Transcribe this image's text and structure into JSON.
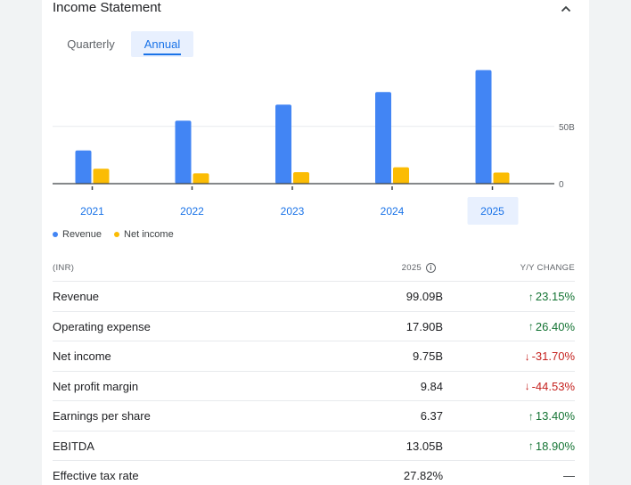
{
  "header": {
    "title": "Income Statement"
  },
  "tabs": {
    "quarterly": "Quarterly",
    "annual": "Annual"
  },
  "chart_data": {
    "type": "bar",
    "categories": [
      "2021",
      "2022",
      "2023",
      "2024",
      "2025"
    ],
    "series": [
      {
        "name": "Revenue",
        "color": "#4285f4",
        "values": [
          29,
          55,
          69,
          80,
          99.09
        ]
      },
      {
        "name": "Net income",
        "color": "#fbbc04",
        "values": [
          13,
          9,
          10,
          14.3,
          9.75
        ]
      }
    ],
    "y_ticks": [
      {
        "value": 50,
        "label": "50B"
      },
      {
        "value": 0,
        "label": "0"
      }
    ],
    "ylim": [
      0,
      100
    ],
    "selected_category": "2025",
    "legend_position": "bottom-left",
    "grid": true
  },
  "table": {
    "headers": {
      "label": "(INR)",
      "year": "2025",
      "change": "Y/Y CHANGE"
    },
    "rows": [
      {
        "label": "Revenue",
        "value": "99.09B",
        "change": "23.15%",
        "dir": "up"
      },
      {
        "label": "Operating expense",
        "value": "17.90B",
        "change": "26.40%",
        "dir": "up"
      },
      {
        "label": "Net income",
        "value": "9.75B",
        "change": "-31.70%",
        "dir": "down"
      },
      {
        "label": "Net profit margin",
        "value": "9.84",
        "change": "-44.53%",
        "dir": "down"
      },
      {
        "label": "Earnings per share",
        "value": "6.37",
        "change": "13.40%",
        "dir": "up"
      },
      {
        "label": "EBITDA",
        "value": "13.05B",
        "change": "18.90%",
        "dir": "up"
      },
      {
        "label": "Effective tax rate",
        "value": "27.82%",
        "change": "—",
        "dir": "flat"
      }
    ]
  }
}
